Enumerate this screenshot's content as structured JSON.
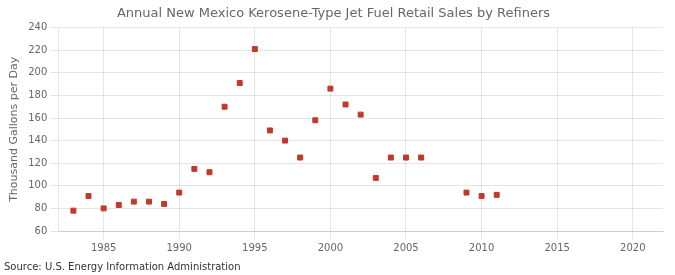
{
  "chart_data": {
    "type": "scatter",
    "title": "Annual New Mexico Kerosene-Type Jet Fuel Retail Sales by Refiners",
    "ylabel": "Thousand Gallons per Day",
    "source": "Source: U.S. Energy Information Administration",
    "x": [
      1983,
      1984,
      1985,
      1986,
      1987,
      1988,
      1989,
      1990,
      1991,
      1992,
      1993,
      1994,
      1995,
      1996,
      1997,
      1998,
      1999,
      2000,
      2001,
      2002,
      2003,
      2004,
      2005,
      2006,
      2009,
      2010,
      2011
    ],
    "values": [
      78,
      91,
      80,
      83,
      86,
      86,
      84,
      94,
      115,
      112,
      170,
      191,
      221,
      149,
      140,
      125,
      158,
      186,
      172,
      163,
      107,
      125,
      125,
      125,
      94,
      91,
      92
    ],
    "color": "#c0392b",
    "marker": "square",
    "xlim": [
      1982,
      2022
    ],
    "xticks": [
      1985,
      1990,
      1995,
      2000,
      2005,
      2010,
      2015,
      2020
    ],
    "ylim": [
      60,
      240
    ],
    "yticks": [
      60,
      80,
      100,
      120,
      140,
      160,
      180,
      200,
      220,
      240
    ],
    "grid": true
  }
}
